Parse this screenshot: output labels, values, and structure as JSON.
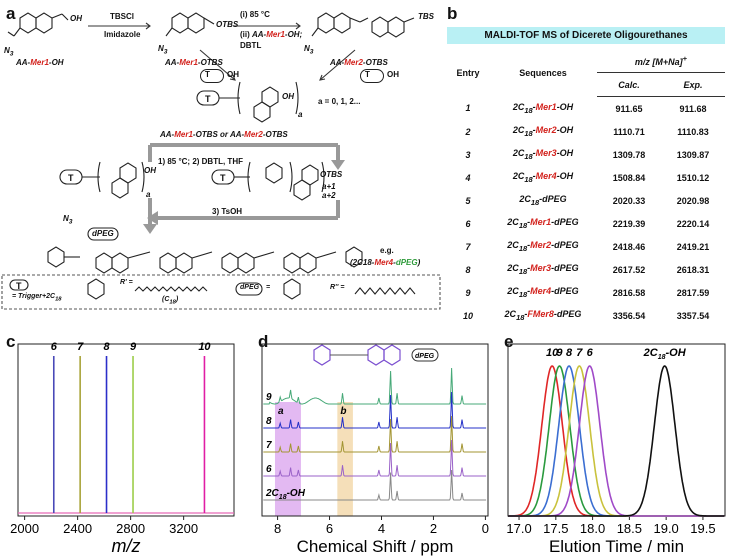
{
  "panels": {
    "a": {
      "label": "a",
      "compounds": {
        "mer1_oh": [
          "AA-",
          "Mer1",
          "-OH"
        ],
        "mer1_otbs": [
          "AA-",
          "Mer1",
          "-OTBS"
        ],
        "mer2_otbs": [
          "AA-",
          "Mer2",
          "-OTBS"
        ]
      },
      "groups": {
        "n3": "N",
        "n3_sub": "3",
        "otbs": "OTBS",
        "tbs": "TBS",
        "oh": "OH",
        "t": "T"
      },
      "step1": {
        "reagent": "TBSCl",
        "solvent": "Imidazole"
      },
      "step2": {
        "line1": "(i) 85 °C",
        "line2_prefix": "(ii) ",
        "line2": [
          "AA-",
          "Mer1",
          "-OH;"
        ],
        "line3": "DBTL"
      },
      "repeat_note": "a = 0, 1, 2...",
      "cycle_header": [
        "AA-",
        "Mer1",
        "-OTBS or ",
        "AA-",
        "Mer2",
        "-OTBS"
      ],
      "cycle_step1": "1) 85 °C; 2)  DBTL, THF",
      "cycle_step3": "3) TsOH",
      "subscripts": {
        "a": "a",
        "a1": "a+1",
        "a2": "a+2"
      },
      "dpeg": "dPEG",
      "example": {
        "eg": "e.g.",
        "name": [
          "(2C18-",
          "Mer4",
          "-",
          "dPEG",
          ")"
        ]
      },
      "legend": {
        "trigger": "= Trigger+2C",
        "trigger_sub": "18",
        "r_prime": "R' =",
        "c18": "(C",
        "c18_sub": "18",
        "c18_end": ")",
        "eq": "=",
        "r_pprime": "R'' ="
      }
    },
    "b": {
      "label": "b",
      "table_title": "MALDI-TOF MS of Dicerete Oligourethanes",
      "header": {
        "entry": "Entry",
        "sequences": "Sequences",
        "mz": "m/z [M+Na]",
        "mz_sup": "+",
        "calc": "Calc.",
        "exp": "Exp."
      },
      "rows": [
        {
          "entry": "1",
          "pre": "2C",
          "sub": "18",
          "mid": "-",
          "mer": "Mer1",
          "post": "-OH",
          "calc": "911.65",
          "exp": "911.68"
        },
        {
          "entry": "2",
          "pre": "2C",
          "sub": "18",
          "mid": "-",
          "mer": "Mer2",
          "post": "-OH",
          "calc": "1110.71",
          "exp": "1110.83"
        },
        {
          "entry": "3",
          "pre": "2C",
          "sub": "18",
          "mid": "-",
          "mer": "Mer3",
          "post": "-OH",
          "calc": "1309.78",
          "exp": "1309.87"
        },
        {
          "entry": "4",
          "pre": "2C",
          "sub": "18",
          "mid": "-",
          "mer": "Mer4",
          "post": "-OH",
          "calc": "1508.84",
          "exp": "1510.12"
        },
        {
          "entry": "5",
          "pre": "2C",
          "sub": "18",
          "mid": "-dPEG",
          "mer": "",
          "post": "",
          "calc": "2020.33",
          "exp": "2020.98"
        },
        {
          "entry": "6",
          "pre": "2C",
          "sub": "18",
          "mid": "-",
          "mer": "Mer1",
          "post": "-dPEG",
          "calc": "2219.39",
          "exp": "2220.14"
        },
        {
          "entry": "7",
          "pre": "2C",
          "sub": "18",
          "mid": "-",
          "mer": "Mer2",
          "post": "-dPEG",
          "calc": "2418.46",
          "exp": "2419.21"
        },
        {
          "entry": "8",
          "pre": "2C",
          "sub": "18",
          "mid": "-",
          "mer": "Mer3",
          "post": "-dPEG",
          "calc": "2617.52",
          "exp": "2618.31"
        },
        {
          "entry": "9",
          "pre": "2C",
          "sub": "18",
          "mid": "-",
          "mer": "Mer4",
          "post": "-dPEG",
          "calc": "2816.58",
          "exp": "2817.59"
        },
        {
          "entry": "10",
          "pre": "2C",
          "sub": "18",
          "mid": "-",
          "mer": "FMer8",
          "post": "-dPEG",
          "calc": "3356.54",
          "exp": "3357.54"
        }
      ]
    }
  },
  "chart_data": [
    {
      "panel": "c",
      "type": "line",
      "title": "",
      "xlabel": "m/z",
      "ylabel": "",
      "xlim": [
        1950,
        3580
      ],
      "x_ticks": [
        "2000",
        "2400",
        "2800",
        "3200"
      ],
      "x_tick_values": [
        2000,
        2400,
        2800,
        3200
      ],
      "series": [
        {
          "name": "6",
          "peak": 2220,
          "color": "#4a4ab8"
        },
        {
          "name": "7",
          "peak": 2419,
          "color": "#a9a43a"
        },
        {
          "name": "8",
          "peak": 2618,
          "color": "#2b2ec9"
        },
        {
          "name": "9",
          "peak": 2818,
          "color": "#9ccd49"
        },
        {
          "name": "10",
          "peak": 3357,
          "color": "#e01ea5"
        }
      ]
    },
    {
      "panel": "d",
      "type": "line",
      "title": "",
      "xlabel": "Chemical Shift / ppm",
      "ylabel": "",
      "xlim": [
        8.6,
        -0.1
      ],
      "x_ticks": [
        "8",
        "6",
        "4",
        "2",
        "0"
      ],
      "x_tick_values": [
        8,
        6,
        4,
        2,
        0
      ],
      "dpeg_label": "dPEG",
      "series": [
        {
          "name": "9",
          "color": "#47a978"
        },
        {
          "name": "8",
          "color": "#2430c8"
        },
        {
          "name": "7",
          "color": "#a39532"
        },
        {
          "name": "6",
          "color": "#9a62c8"
        },
        {
          "name": "2C18-OH",
          "label_pre": "2C",
          "label_sub": "18",
          "label_post": "-OH",
          "color": "#888888"
        }
      ],
      "highlights": [
        {
          "name": "a",
          "range": [
            8.1,
            7.1
          ],
          "color": "#d9a2ee"
        },
        {
          "name": "b",
          "range": [
            5.7,
            5.1
          ],
          "color": "#f1d4a2"
        }
      ]
    },
    {
      "panel": "e",
      "type": "line",
      "title": "",
      "xlabel": "Elution Time / min",
      "ylabel": "",
      "xlim": [
        16.85,
        19.8
      ],
      "x_ticks": [
        "17.0",
        "17.5",
        "18.0",
        "18.5",
        "19.0",
        "19.5"
      ],
      "x_tick_values": [
        17.0,
        17.5,
        18.0,
        18.5,
        19.0,
        19.5
      ],
      "series": [
        {
          "name": "10",
          "peak": 17.45,
          "color": "#e02727"
        },
        {
          "name": "9",
          "peak": 17.55,
          "color": "#2a9a3e"
        },
        {
          "name": "8",
          "peak": 17.68,
          "color": "#3b6ed2"
        },
        {
          "name": "7",
          "peak": 17.82,
          "color": "#c9c23c"
        },
        {
          "name": "6",
          "peak": 17.96,
          "color": "#a04ac8"
        },
        {
          "name": "2C18-OH",
          "label_pre": "2C",
          "label_sub": "18",
          "label_post": "-OH",
          "peak": 18.98,
          "color": "#111111"
        }
      ]
    }
  ]
}
